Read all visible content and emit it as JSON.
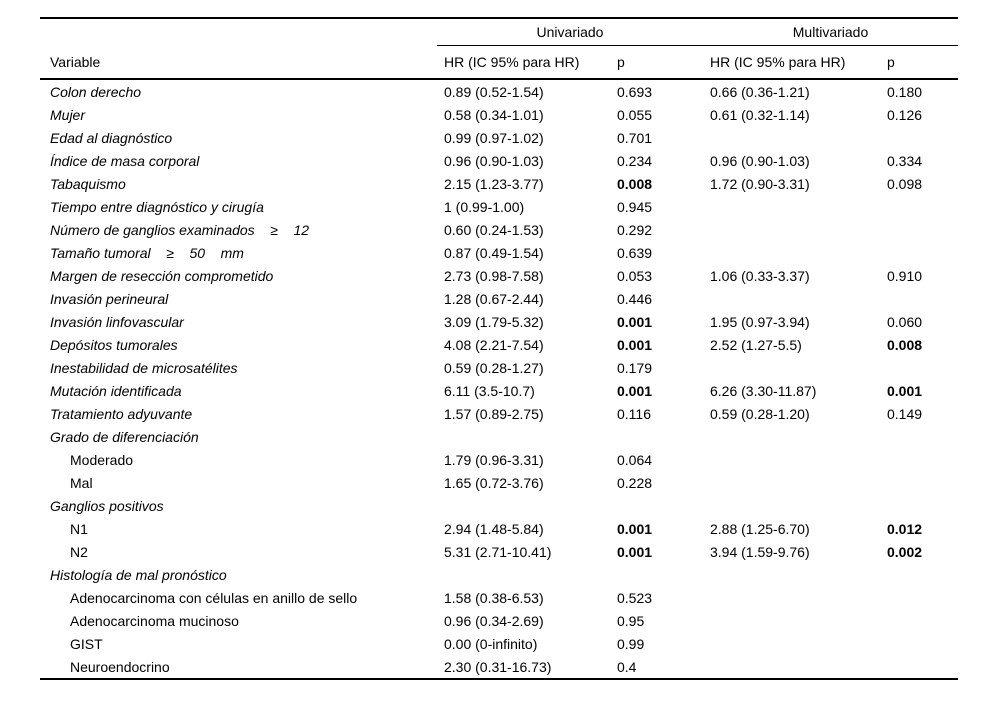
{
  "table": {
    "group_headers": {
      "univariado": "Univariado",
      "multivariado": "Multivariado"
    },
    "columns": {
      "variable": "Variable",
      "hr": "HR (IC 95% para HR)",
      "p": "p"
    },
    "colors": {
      "text": "#000000",
      "background": "#ffffff",
      "rule": "#000000"
    },
    "rows": [
      {
        "label": "Colon derecho",
        "italic": true,
        "indent": false,
        "uni_hr": "0.89 (0.52-1.54)",
        "uni_p": "0.693",
        "uni_p_bold": false,
        "multi_hr": "0.66 (0.36-1.21)",
        "multi_p": "0.180",
        "multi_p_bold": false
      },
      {
        "label": "Mujer",
        "italic": true,
        "indent": false,
        "uni_hr": "0.58 (0.34-1.01)",
        "uni_p": "0.055",
        "uni_p_bold": false,
        "multi_hr": "0.61 (0.32-1.14)",
        "multi_p": "0.126",
        "multi_p_bold": false
      },
      {
        "label": "Edad al diagnóstico",
        "italic": true,
        "indent": false,
        "uni_hr": "0.99 (0.97-1.02)",
        "uni_p": "0.701",
        "uni_p_bold": false,
        "multi_hr": "",
        "multi_p": "",
        "multi_p_bold": false
      },
      {
        "label": "Índice de masa corporal",
        "italic": true,
        "indent": false,
        "uni_hr": "0.96 (0.90-1.03)",
        "uni_p": "0.234",
        "uni_p_bold": false,
        "multi_hr": "0.96 (0.90-1.03)",
        "multi_p": "0.334",
        "multi_p_bold": false
      },
      {
        "label": "Tabaquismo",
        "italic": true,
        "indent": false,
        "uni_hr": "2.15 (1.23-3.77)",
        "uni_p": "0.008",
        "uni_p_bold": true,
        "multi_hr": "1.72 (0.90-3.31)",
        "multi_p": "0.098",
        "multi_p_bold": false
      },
      {
        "label": "Tiempo entre diagnóstico y cirugía",
        "italic": true,
        "indent": false,
        "uni_hr": "1 (0.99-1.00)",
        "uni_p": "0.945",
        "uni_p_bold": false,
        "multi_hr": "",
        "multi_p": "",
        "multi_p_bold": false
      },
      {
        "label": "Número de ganglios examinados    ≥    12",
        "italic": true,
        "indent": false,
        "uni_hr": "0.60 (0.24-1.53)",
        "uni_p": "0.292",
        "uni_p_bold": false,
        "multi_hr": "",
        "multi_p": "",
        "multi_p_bold": false
      },
      {
        "label": "Tamaño tumoral    ≥    50    mm",
        "italic": true,
        "indent": false,
        "uni_hr": "0.87 (0.49-1.54)",
        "uni_p": "0.639",
        "uni_p_bold": false,
        "multi_hr": "",
        "multi_p": "",
        "multi_p_bold": false
      },
      {
        "label": "Margen de resección comprometido",
        "italic": true,
        "indent": false,
        "uni_hr": "2.73 (0.98-7.58)",
        "uni_p": "0.053",
        "uni_p_bold": false,
        "multi_hr": "1.06 (0.33-3.37)",
        "multi_p": "0.910",
        "multi_p_bold": false
      },
      {
        "label": "Invasión perineural",
        "italic": true,
        "indent": false,
        "uni_hr": "1.28 (0.67-2.44)",
        "uni_p": "0.446",
        "uni_p_bold": false,
        "multi_hr": "",
        "multi_p": "",
        "multi_p_bold": false
      },
      {
        "label": "Invasión linfovascular",
        "italic": true,
        "indent": false,
        "uni_hr": "3.09 (1.79-5.32)",
        "uni_p": "0.001",
        "uni_p_bold": true,
        "multi_hr": "1.95 (0.97-3.94)",
        "multi_p": "0.060",
        "multi_p_bold": false
      },
      {
        "label": "Depósitos tumorales",
        "italic": true,
        "indent": false,
        "uni_hr": "4.08 (2.21-7.54)",
        "uni_p": "0.001",
        "uni_p_bold": true,
        "multi_hr": "2.52 (1.27-5.5)",
        "multi_p": "0.008",
        "multi_p_bold": true
      },
      {
        "label": "Inestabilidad de microsatélites",
        "italic": true,
        "indent": false,
        "uni_hr": "0.59 (0.28-1.27)",
        "uni_p": "0.179",
        "uni_p_bold": false,
        "multi_hr": "",
        "multi_p": "",
        "multi_p_bold": false
      },
      {
        "label": "Mutación identificada",
        "italic": true,
        "indent": false,
        "uni_hr": "6.11 (3.5-10.7)",
        "uni_p": "0.001",
        "uni_p_bold": true,
        "multi_hr": "6.26 (3.30-11.87)",
        "multi_p": "0.001",
        "multi_p_bold": true
      },
      {
        "label": "Tratamiento adyuvante",
        "italic": true,
        "indent": false,
        "uni_hr": "1.57 (0.89-2.75)",
        "uni_p": "0.116",
        "uni_p_bold": false,
        "multi_hr": "0.59 (0.28-1.20)",
        "multi_p": "0.149",
        "multi_p_bold": false
      },
      {
        "label": "Grado de diferenciación",
        "italic": true,
        "indent": false,
        "uni_hr": "",
        "uni_p": "",
        "uni_p_bold": false,
        "multi_hr": "",
        "multi_p": "",
        "multi_p_bold": false
      },
      {
        "label": "Moderado",
        "italic": false,
        "indent": true,
        "uni_hr": "1.79 (0.96-3.31)",
        "uni_p": "0.064",
        "uni_p_bold": false,
        "multi_hr": "",
        "multi_p": "",
        "multi_p_bold": false
      },
      {
        "label": "Mal",
        "italic": false,
        "indent": true,
        "uni_hr": "1.65 (0.72-3.76)",
        "uni_p": "0.228",
        "uni_p_bold": false,
        "multi_hr": "",
        "multi_p": "",
        "multi_p_bold": false
      },
      {
        "label": "Ganglios positivos",
        "italic": true,
        "indent": false,
        "uni_hr": "",
        "uni_p": "",
        "uni_p_bold": false,
        "multi_hr": "",
        "multi_p": "",
        "multi_p_bold": false
      },
      {
        "label": "N1",
        "italic": false,
        "indent": true,
        "uni_hr": "2.94 (1.48-5.84)",
        "uni_p": "0.001",
        "uni_p_bold": true,
        "multi_hr": "2.88 (1.25-6.70)",
        "multi_p": "0.012",
        "multi_p_bold": true
      },
      {
        "label": "N2",
        "italic": false,
        "indent": true,
        "uni_hr": "5.31 (2.71-10.41)",
        "uni_p": "0.001",
        "uni_p_bold": true,
        "multi_hr": "3.94 (1.59-9.76)",
        "multi_p": "0.002",
        "multi_p_bold": true
      },
      {
        "label": "Histología de mal pronóstico",
        "italic": true,
        "indent": false,
        "uni_hr": "",
        "uni_p": "",
        "uni_p_bold": false,
        "multi_hr": "",
        "multi_p": "",
        "multi_p_bold": false
      },
      {
        "label": "Adenocarcinoma con células en anillo de sello",
        "italic": false,
        "indent": true,
        "uni_hr": "1.58 (0.38-6.53)",
        "uni_p": "0.523",
        "uni_p_bold": false,
        "multi_hr": "",
        "multi_p": "",
        "multi_p_bold": false
      },
      {
        "label": "Adenocarcinoma mucinoso",
        "italic": false,
        "indent": true,
        "uni_hr": "0.96 (0.34-2.69)",
        "uni_p": "0.95",
        "uni_p_bold": false,
        "multi_hr": "",
        "multi_p": "",
        "multi_p_bold": false
      },
      {
        "label": "GIST",
        "italic": false,
        "indent": true,
        "uni_hr": "0.00 (0-infinito)",
        "uni_p": "0.99",
        "uni_p_bold": false,
        "multi_hr": "",
        "multi_p": "",
        "multi_p_bold": false
      },
      {
        "label": "Neuroendocrino",
        "italic": false,
        "indent": true,
        "uni_hr": "2.30 (0.31-16.73)",
        "uni_p": "0.4",
        "uni_p_bold": false,
        "multi_hr": "",
        "multi_p": "",
        "multi_p_bold": false
      }
    ]
  }
}
